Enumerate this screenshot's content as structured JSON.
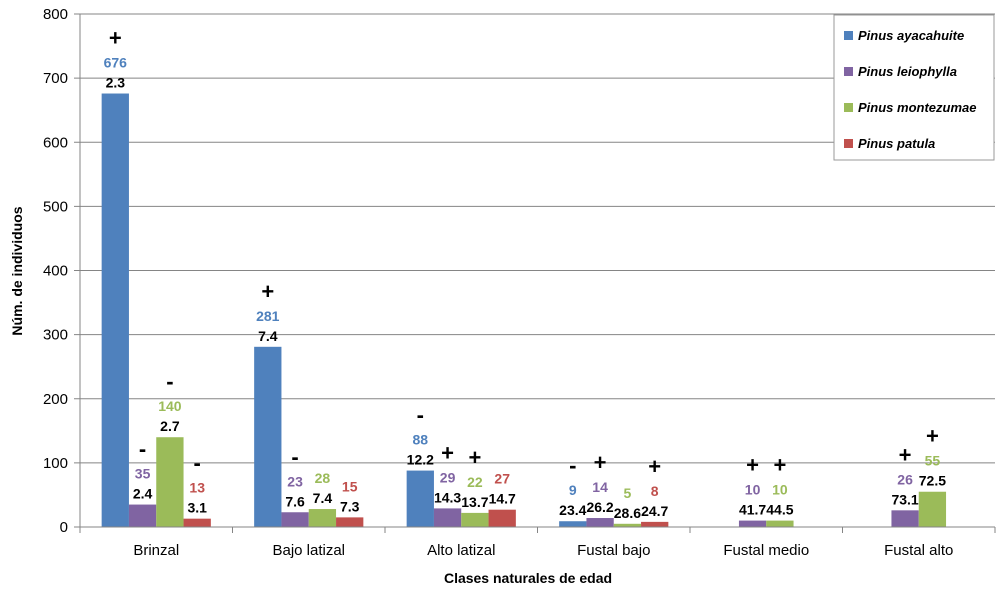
{
  "chart_data": {
    "type": "bar",
    "xlabel": "Clases naturales de edad",
    "ylabel": "Núm. de individuos",
    "ylim": [
      0,
      800
    ],
    "yticks": [
      0,
      100,
      200,
      300,
      400,
      500,
      600,
      700,
      800
    ],
    "grid": "horizontal",
    "legend_position": "top-right",
    "categories": [
      "Brinzal",
      "Bajo latizal",
      "Alto latizal",
      "Fustal bajo",
      "Fustal medio",
      "Fustal alto"
    ],
    "series": [
      {
        "name": "Pinus ayacahuite",
        "color": "#4F81BD",
        "values": [
          676,
          281,
          88,
          9,
          0,
          0
        ],
        "counts": [
          "676",
          "281",
          "88",
          "9",
          "",
          ""
        ],
        "averages": [
          "2.3",
          "7.4",
          "12.2",
          "23.4",
          "",
          ""
        ],
        "signs": [
          "+",
          "+",
          "-",
          "-",
          "",
          ""
        ]
      },
      {
        "name": "Pinus leiophylla",
        "color": "#8064A2",
        "values": [
          35,
          23,
          29,
          14,
          10,
          26
        ],
        "counts": [
          "35",
          "23",
          "29",
          "14",
          "10",
          "26"
        ],
        "averages": [
          "2.4",
          "7.6",
          "14.3",
          "26.2",
          "41.7",
          "73.1"
        ],
        "signs": [
          "-",
          "-",
          "+",
          "+",
          "+",
          "+"
        ]
      },
      {
        "name": "Pinus montezumae",
        "color": "#9BBB59",
        "values": [
          140,
          28,
          22,
          5,
          10,
          55
        ],
        "counts": [
          "140",
          "28",
          "22",
          "5",
          "10",
          "55"
        ],
        "averages": [
          "2.7",
          "7.4",
          "13.7",
          "28.6",
          "44.5",
          "72.5"
        ],
        "signs": [
          "-",
          "",
          "+",
          "",
          "+",
          "+"
        ]
      },
      {
        "name": "Pinus patula",
        "color": "#C0504D",
        "values": [
          13,
          15,
          27,
          8,
          0,
          0
        ],
        "counts": [
          "13",
          "15",
          "27",
          "8",
          "",
          ""
        ],
        "averages": [
          "3.1",
          "7.3",
          "14.7",
          "24.7",
          "",
          ""
        ],
        "signs": [
          "-",
          "",
          "",
          "+",
          "",
          ""
        ]
      }
    ]
  }
}
